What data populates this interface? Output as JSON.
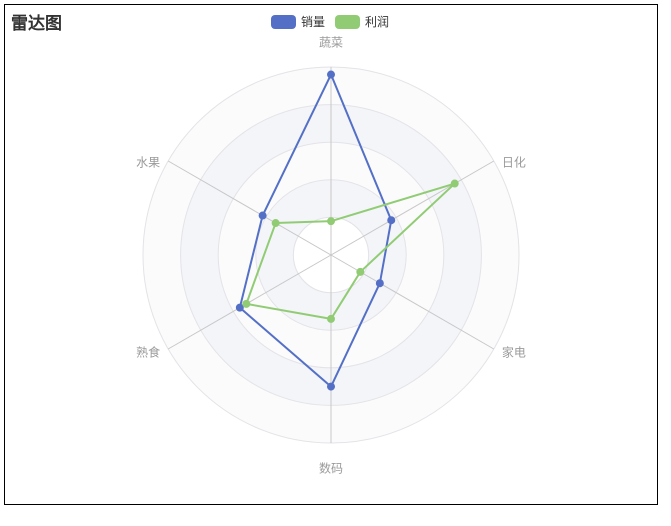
{
  "chart_data": {
    "type": "radar",
    "title": "雷达图",
    "indicators": [
      "蔬菜",
      "日化",
      "家电",
      "数码",
      "熟食",
      "水果"
    ],
    "max": 100,
    "split_number": 5,
    "legend_position": "top-center",
    "series": [
      {
        "name": "销量",
        "color": "#5470c6",
        "values": [
          96,
          37,
          30,
          70,
          56,
          42
        ]
      },
      {
        "name": "利润",
        "color": "#91cc75",
        "values": [
          18,
          76,
          18,
          34,
          52,
          34
        ]
      }
    ]
  }
}
